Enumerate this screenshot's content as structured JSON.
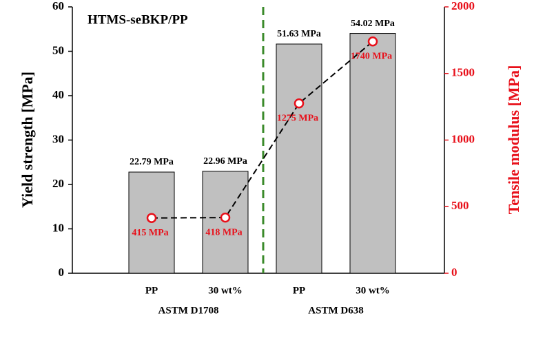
{
  "chart_data": {
    "type": "bar",
    "title": "HTMS-seBKP/PP",
    "categories": [
      "PP",
      "30 wt%",
      "PP",
      "30 wt%"
    ],
    "groups": [
      {
        "label": "ASTM D1708",
        "span": 2
      },
      {
        "label": "ASTM D638",
        "span": 2
      }
    ],
    "y_label": "Yield strength [MPa]",
    "y2_label": "Tensile modulus [MPa]",
    "ylim": [
      0,
      60
    ],
    "yticks": [
      0,
      10,
      20,
      30,
      40,
      50,
      60
    ],
    "y2lim": [
      0,
      2000
    ],
    "y2ticks": [
      0,
      500,
      1000,
      1500,
      2000
    ],
    "y2_color": "#e8101a",
    "series": [
      {
        "type": "bar",
        "color": "#c0c0c0",
        "values": [
          22.79,
          22.96,
          51.63,
          54.02
        ],
        "value_labels": [
          "22.79 MPa",
          "22.96 MPa",
          "51.63 MPa",
          "54.02 MPa"
        ]
      },
      {
        "type": "line",
        "axis": "y2",
        "color": "#000000",
        "marker_color": "#e8101a",
        "values": [
          415,
          418,
          1275,
          1740
        ],
        "value_labels": [
          "415 MPa",
          "418 MPa",
          "1275 MPa",
          "1740 MPa"
        ]
      }
    ]
  }
}
